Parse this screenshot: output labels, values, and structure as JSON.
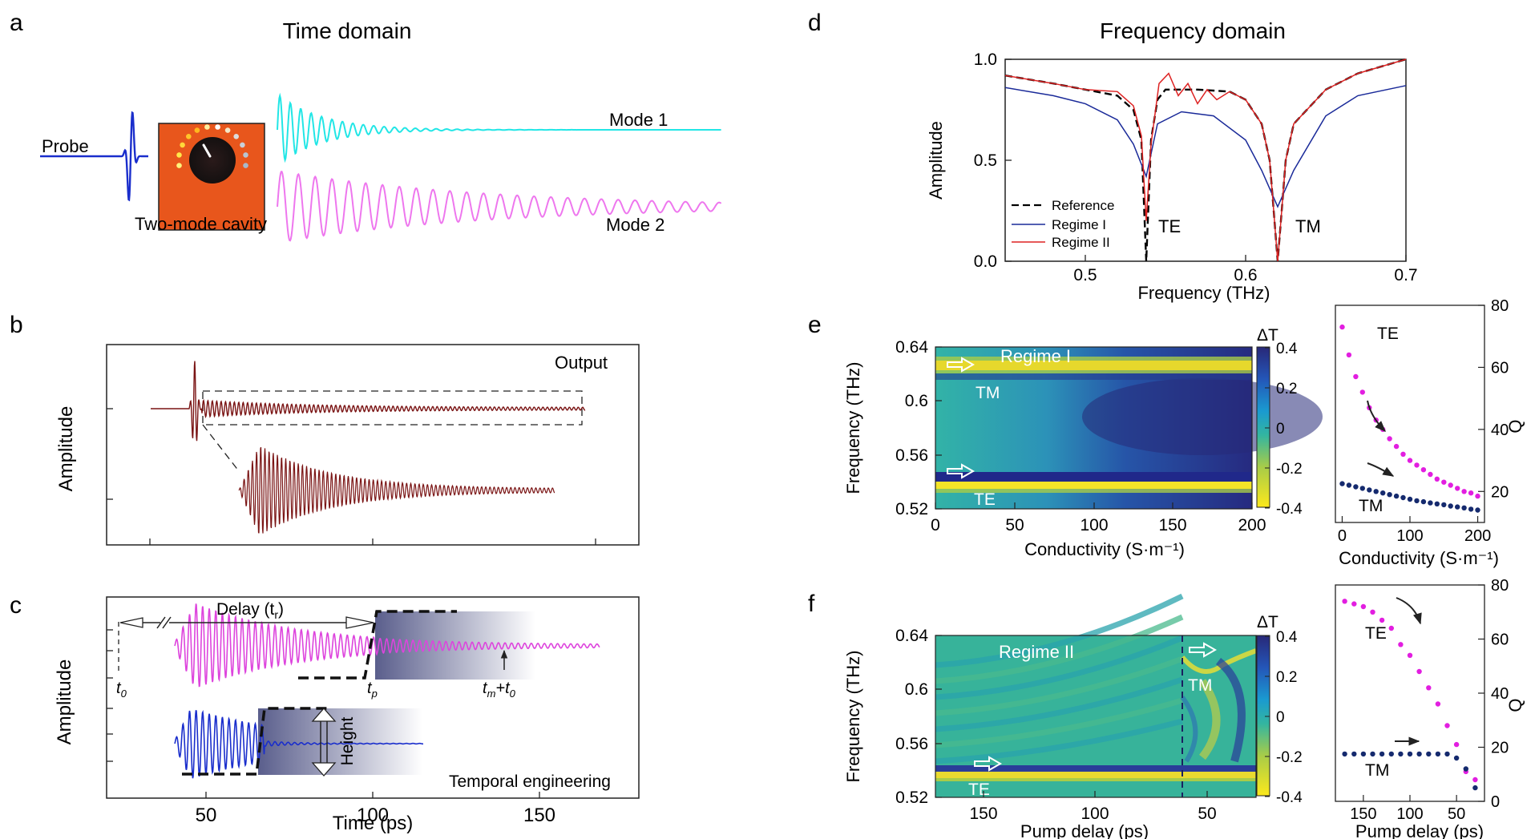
{
  "panels": {
    "a": {
      "letter": "a",
      "title": "Time domain",
      "probe_label": "Probe",
      "cavity_label": "Two-mode cavity",
      "mode1_label": "Mode 1",
      "mode2_label": "Mode 2",
      "colors": {
        "probe": "#1a2ecc",
        "mode1": "#22e6e6",
        "mode2": "#ee77ee",
        "cavity": "#e8561c"
      }
    },
    "b": {
      "letter": "b",
      "ylabel": "Amplitude",
      "output_label": "Output",
      "colors": {
        "trace": "#7a1414"
      }
    },
    "c": {
      "letter": "c",
      "ylabel": "Amplitude",
      "xlabel": "Time (ps)",
      "xticks": [
        "50",
        "100",
        "150"
      ],
      "delay_label": "Delay (t",
      "delay_sub": "r",
      "delay_close": ")",
      "t0_label": "t",
      "t0_sub": "0",
      "tp_label": "t",
      "tp_sub": "p",
      "tm_label": "t",
      "tm_sub": "m",
      "tm_plus": "+t",
      "tm_sub2": "0",
      "height_label": "Height",
      "engineering_label": "Temporal engineering",
      "colors": {
        "top": "#dd44dd",
        "bottom": "#1a2ecc"
      }
    },
    "d": {
      "letter": "d",
      "title": "Frequency domain",
      "ylabel": "Amplitude",
      "xlabel": "Frequency (THz)",
      "xticks": [
        "0.5",
        "0.6",
        "0.7"
      ],
      "yticks": [
        "0.0",
        "0.5",
        "1.0"
      ],
      "te_label": "TE",
      "tm_label": "TM",
      "legend": [
        "Reference",
        "Regime I",
        "Regime II"
      ],
      "colors": {
        "reference": "#000000",
        "regime1": "#1a2a99",
        "regime2": "#dd2222"
      }
    },
    "e": {
      "letter": "e",
      "ylabel": "Frequency (THz)",
      "xlabel": "Conductivity (S·m⁻¹)",
      "xticks": [
        "0",
        "50",
        "100",
        "150",
        "200"
      ],
      "yticks": [
        "0.64",
        "0.6",
        "0.56",
        "0.52"
      ],
      "regime_label": "Regime I",
      "tm_label": "TM",
      "te_label": "TE",
      "cbar_label": "ΔT",
      "cbar_ticks": [
        "0.4",
        "0.2",
        "0",
        "-0.2",
        "-0.4"
      ],
      "q_ylabel": "Q",
      "q_xlabel": "Conductivity (S·m⁻¹)",
      "q_xticks": [
        "0",
        "100",
        "200"
      ],
      "q_yticks": [
        "80",
        "60",
        "40",
        "20"
      ],
      "q_te_label": "TE",
      "q_tm_label": "TM"
    },
    "f": {
      "letter": "f",
      "ylabel": "Frequency (THz)",
      "xlabel": "Pump delay (ps)",
      "xticks": [
        "150",
        "100",
        "50"
      ],
      "yticks": [
        "0.64",
        "0.6",
        "0.56",
        "0.52"
      ],
      "regime_label": "Regime II",
      "tm_label": "TM",
      "te_label": "TE",
      "cbar_label": "ΔT",
      "cbar_ticks": [
        "0.4",
        "0.2",
        "0",
        "-0.2",
        "-0.4"
      ],
      "q_ylabel": "Q",
      "q_xlabel": "Pump delay (ps)",
      "q_xticks": [
        "150",
        "100",
        "50"
      ],
      "q_yticks": [
        "80",
        "60",
        "40",
        "20",
        "0"
      ],
      "q_te_label": "TE",
      "q_tm_label": "TM"
    }
  },
  "chart_data": [
    {
      "type": "line",
      "panel": "d",
      "title": "Frequency domain",
      "xlabel": "Frequency (THz)",
      "ylabel": "Amplitude",
      "xlim": [
        0.45,
        0.7
      ],
      "ylim": [
        0,
        1
      ],
      "series": [
        {
          "name": "Reference",
          "x": [
            0.45,
            0.48,
            0.5,
            0.52,
            0.53,
            0.535,
            0.538,
            0.541,
            0.545,
            0.55,
            0.57,
            0.59,
            0.6,
            0.61,
            0.615,
            0.62,
            0.625,
            0.63,
            0.65,
            0.67,
            0.7
          ],
          "y": [
            0.92,
            0.88,
            0.85,
            0.82,
            0.75,
            0.6,
            0.0,
            0.6,
            0.8,
            0.85,
            0.85,
            0.84,
            0.8,
            0.68,
            0.5,
            0.0,
            0.5,
            0.68,
            0.85,
            0.93,
            1.0
          ]
        },
        {
          "name": "Regime I",
          "x": [
            0.45,
            0.48,
            0.5,
            0.52,
            0.53,
            0.538,
            0.545,
            0.56,
            0.58,
            0.6,
            0.61,
            0.62,
            0.63,
            0.65,
            0.67,
            0.7
          ],
          "y": [
            0.86,
            0.82,
            0.78,
            0.7,
            0.58,
            0.42,
            0.68,
            0.74,
            0.72,
            0.6,
            0.45,
            0.27,
            0.45,
            0.72,
            0.82,
            0.87
          ]
        },
        {
          "name": "Regime II",
          "x": [
            0.45,
            0.48,
            0.5,
            0.52,
            0.53,
            0.535,
            0.538,
            0.541,
            0.546,
            0.552,
            0.558,
            0.564,
            0.57,
            0.576,
            0.582,
            0.59,
            0.6,
            0.61,
            0.615,
            0.62,
            0.625,
            0.63,
            0.65,
            0.67,
            0.7
          ],
          "y": [
            0.92,
            0.88,
            0.85,
            0.84,
            0.77,
            0.62,
            0.2,
            0.58,
            0.88,
            0.93,
            0.82,
            0.88,
            0.78,
            0.85,
            0.8,
            0.84,
            0.8,
            0.68,
            0.5,
            0.0,
            0.5,
            0.68,
            0.85,
            0.93,
            1.0
          ]
        }
      ]
    },
    {
      "type": "scatter",
      "panel": "e",
      "xlabel": "Conductivity (S·m⁻¹)",
      "ylabel": "Q",
      "xlim": [
        -10,
        210
      ],
      "ylim": [
        10,
        80
      ],
      "series": [
        {
          "name": "TE",
          "x": [
            0,
            10,
            20,
            30,
            40,
            50,
            60,
            70,
            80,
            90,
            100,
            110,
            120,
            130,
            140,
            150,
            160,
            170,
            180,
            190,
            200
          ],
          "y": [
            73,
            64,
            57,
            52,
            47,
            43,
            40,
            37,
            34.5,
            32,
            30,
            28.5,
            27,
            25.5,
            24,
            23,
            22,
            21,
            20,
            19.5,
            18.5
          ]
        },
        {
          "name": "TM",
          "x": [
            0,
            10,
            20,
            30,
            40,
            50,
            60,
            70,
            80,
            90,
            100,
            110,
            120,
            130,
            140,
            150,
            160,
            170,
            180,
            190,
            200
          ],
          "y": [
            22.5,
            22,
            21.5,
            21,
            20.5,
            20,
            19.5,
            19,
            18.5,
            18,
            17.5,
            17,
            16.7,
            16.3,
            16,
            15.7,
            15.3,
            15,
            14.7,
            14.3,
            14
          ]
        }
      ]
    },
    {
      "type": "scatter",
      "panel": "f",
      "xlabel": "Pump delay (ps)",
      "ylabel": "Q",
      "xlim": [
        180,
        20
      ],
      "ylim": [
        0,
        80
      ],
      "series": [
        {
          "name": "TE",
          "x": [
            170,
            160,
            150,
            140,
            130,
            120,
            110,
            100,
            90,
            80,
            70,
            60,
            50,
            40,
            30
          ],
          "y": [
            74,
            73,
            72,
            70,
            67,
            64,
            58,
            54,
            48,
            42,
            36,
            28,
            21,
            11,
            8
          ]
        },
        {
          "name": "TM",
          "x": [
            170,
            160,
            150,
            140,
            130,
            120,
            110,
            100,
            90,
            80,
            70,
            60,
            50,
            40,
            30
          ],
          "y": [
            17.5,
            17.5,
            17.5,
            17.5,
            17.5,
            17.5,
            17.5,
            17.5,
            17.5,
            17.5,
            17.5,
            17.5,
            16,
            12,
            5
          ]
        }
      ]
    }
  ]
}
